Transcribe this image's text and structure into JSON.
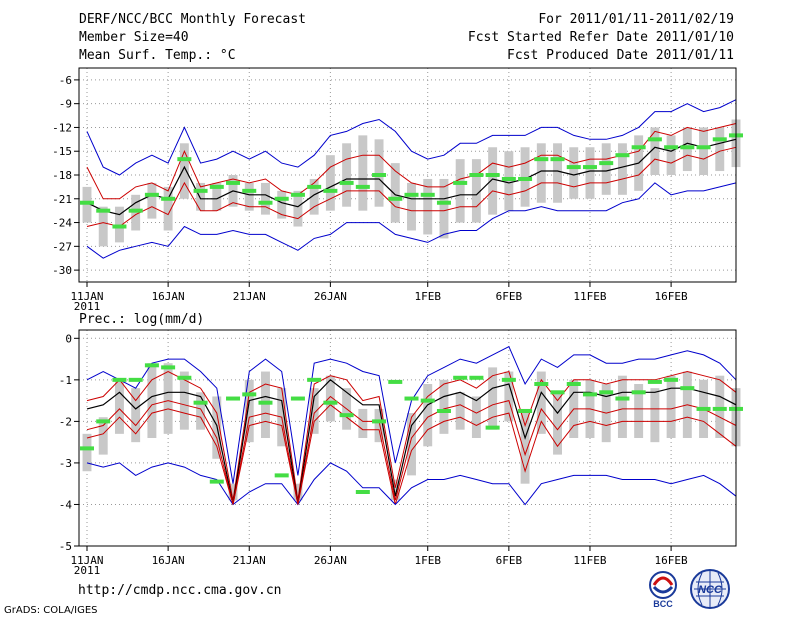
{
  "header": {
    "title": "DERF/NCC/BCC Monthly Forecast",
    "member_size": "Member Size=40",
    "variable": "Mean Surf. Temp.: °C",
    "period": "For 2011/01/11-2011/02/19",
    "started": "Fcst Started Refer Date 2011/01/10",
    "produced": "Fcst Produced Date 2011/01/11"
  },
  "footer": {
    "url": "http://cmdp.ncc.cma.gov.cn",
    "grads": "GrADS: COLA/IGES",
    "logo_bcc": "BCC",
    "logo_ncc": "NCC"
  },
  "colors": {
    "outer_bound": "#0000cc",
    "spread": "#cc0000",
    "mean": "#000000",
    "box": "#c8c8c8",
    "marker": "#44dd44"
  },
  "chart_data": [
    {
      "type": "line",
      "title": "Mean Surf. Temp.: °C",
      "days": 40,
      "ylim": [
        -31.5,
        -4.5
      ],
      "yticks": [
        -6,
        -9,
        -12,
        -15,
        -18,
        -21,
        -24,
        -27,
        -30
      ],
      "x_ticks": [
        {
          "day": 0,
          "label": "11JAN",
          "sub": "2011"
        },
        {
          "day": 5,
          "label": "16JAN"
        },
        {
          "day": 10,
          "label": "21JAN"
        },
        {
          "day": 15,
          "label": "26JAN"
        },
        {
          "day": 21,
          "label": "1FEB"
        },
        {
          "day": 26,
          "label": "6FEB"
        },
        {
          "day": 31,
          "label": "11FEB"
        },
        {
          "day": 36,
          "label": "16FEB"
        }
      ],
      "grid": true,
      "series": [
        {
          "name": "max",
          "values": [
            -12.5,
            -17,
            -18,
            -16.5,
            -15.5,
            -16.5,
            -12,
            -16.5,
            -16,
            -15,
            -16,
            -15,
            -16.5,
            -17,
            -15.5,
            -13,
            -12.5,
            -11.5,
            -11,
            -12.5,
            -15,
            -16,
            -15.5,
            -14,
            -14,
            -13,
            -13,
            -13,
            -12,
            -12,
            -13,
            -13.5,
            -13.5,
            -13,
            -12,
            -10,
            -10,
            -9,
            -10,
            -9.5,
            -8.5
          ]
        },
        {
          "name": "upper",
          "values": [
            -17,
            -21,
            -21,
            -19.5,
            -19,
            -20,
            -15,
            -19.5,
            -19,
            -18.5,
            -19,
            -18.5,
            -20,
            -20.5,
            -19,
            -17,
            -16,
            -15.5,
            -15.5,
            -17.5,
            -19,
            -19.5,
            -19.5,
            -18.5,
            -18,
            -16.5,
            -17,
            -16.5,
            -15.5,
            -15.5,
            -16.5,
            -16,
            -16,
            -15.5,
            -15,
            -12.5,
            -13,
            -12,
            -12.5,
            -12,
            -11.5
          ]
        },
        {
          "name": "mean",
          "values": [
            -21.5,
            -22.5,
            -23,
            -21.5,
            -20.5,
            -21,
            -17,
            -21,
            -21,
            -20,
            -20.5,
            -20.5,
            -21.5,
            -22,
            -20.5,
            -19.5,
            -18.5,
            -18.5,
            -18.5,
            -20.5,
            -21,
            -21,
            -21,
            -20.5,
            -20.5,
            -18.5,
            -19,
            -18.5,
            -17.5,
            -17.5,
            -18,
            -17.5,
            -17.5,
            -17,
            -16.5,
            -14.5,
            -15,
            -14,
            -14.5,
            -14,
            -13.5
          ]
        },
        {
          "name": "lower",
          "values": [
            -24.5,
            -24,
            -24.5,
            -23,
            -22,
            -23,
            -19,
            -22.5,
            -22.5,
            -21.5,
            -22,
            -22,
            -23,
            -23.5,
            -22,
            -21,
            -20,
            -20,
            -20,
            -22,
            -22.5,
            -22.5,
            -22.5,
            -22,
            -22,
            -20,
            -20.5,
            -20,
            -19,
            -19,
            -19.5,
            -19,
            -19,
            -18.5,
            -18,
            -16,
            -16.5,
            -15.5,
            -16,
            -15,
            -14.5
          ]
        },
        {
          "name": "min",
          "values": [
            -27,
            -28.5,
            -27.5,
            -27,
            -26.5,
            -27,
            -24.5,
            -25.5,
            -25.5,
            -25,
            -25.5,
            -25.5,
            -26.5,
            -27.5,
            -26,
            -25.5,
            -24,
            -24,
            -24,
            -25.5,
            -26,
            -26.5,
            -25.5,
            -25,
            -25,
            -23.5,
            -22.5,
            -22.5,
            -22,
            -22.5,
            -22.5,
            -22.5,
            -22.5,
            -21.5,
            -21,
            -19,
            -20.5,
            -20,
            -20,
            -19.5,
            -19
          ]
        }
      ],
      "boxes": {
        "top": [
          -19.5,
          -22,
          -22,
          -20.5,
          -19,
          -19.5,
          -14,
          -19,
          -19,
          -18,
          -19,
          -19,
          -20,
          -20,
          -18.5,
          -15.5,
          -14,
          -13,
          -13.5,
          -16.5,
          -19,
          -18.5,
          -18.5,
          -16,
          -16,
          -14.5,
          -15,
          -14.5,
          -14,
          -14,
          -14.5,
          -14.5,
          -14,
          -14,
          -13,
          -12,
          -13,
          -12,
          -12,
          -12,
          -11
        ],
        "bottom": [
          -24,
          -27,
          -26.5,
          -25,
          -23.5,
          -25,
          -21,
          -22.5,
          -22.5,
          -22,
          -22.5,
          -23,
          -23.5,
          -24.5,
          -23,
          -22.5,
          -22,
          -22.5,
          -22,
          -24,
          -25,
          -25.5,
          -26,
          -24,
          -24,
          -23,
          -22.5,
          -22,
          -21.5,
          -21.5,
          -21,
          -21,
          -20.5,
          -20.5,
          -20,
          -18,
          -18,
          -17.5,
          -18,
          -17.5,
          -17
        ]
      },
      "markers": [
        -21.5,
        -22.5,
        -24.5,
        -22.5,
        -20.5,
        -21,
        -16,
        -20,
        -19.5,
        -19,
        -20,
        -21.5,
        -21,
        -20.5,
        -19.5,
        -20,
        -19,
        -19.5,
        -18,
        -21,
        -20.5,
        -20.5,
        -21.5,
        -19,
        -18,
        -18,
        -18.5,
        -18.5,
        -16,
        -16,
        -17,
        -17,
        -16.5,
        -15.5,
        -14.5,
        -13.5,
        -14.5,
        -14.5,
        -14.5,
        -13.5,
        -13
      ]
    },
    {
      "type": "line",
      "title": "Prec.: log(mm/d)",
      "days": 40,
      "ylim": [
        -5,
        0.2
      ],
      "yticks": [
        0,
        -1,
        -2,
        -3,
        -4,
        -5
      ],
      "x_ticks": [
        {
          "day": 0,
          "label": "11JAN",
          "sub": "2011"
        },
        {
          "day": 5,
          "label": "16JAN"
        },
        {
          "day": 10,
          "label": "21JAN"
        },
        {
          "day": 15,
          "label": "26JAN"
        },
        {
          "day": 21,
          "label": "1FEB"
        },
        {
          "day": 26,
          "label": "6FEB"
        },
        {
          "day": 31,
          "label": "11FEB"
        },
        {
          "day": 36,
          "label": "16FEB"
        }
      ],
      "grid": true,
      "series": [
        {
          "name": "max",
          "values": [
            -1,
            -0.8,
            -1,
            -1.2,
            -0.6,
            -0.5,
            -0.5,
            -0.8,
            -1.2,
            -3.5,
            -0.8,
            -0.5,
            -0.8,
            -3.3,
            -0.6,
            -0.5,
            -0.6,
            -0.8,
            -0.9,
            -3,
            -1.5,
            -0.9,
            -0.7,
            -0.5,
            -0.6,
            -0.4,
            -0.2,
            -1.1,
            -0.5,
            -0.7,
            -0.4,
            -0.4,
            -0.6,
            -0.6,
            -0.5,
            -0.5,
            -0.4,
            -0.3,
            -0.4,
            -0.6,
            -1
          ]
        },
        {
          "name": "upper",
          "values": [
            -1.5,
            -1.4,
            -1,
            -1.5,
            -1,
            -0.8,
            -1,
            -1.2,
            -1.8,
            -3.9,
            -1.3,
            -1.1,
            -1.2,
            -3.9,
            -1.1,
            -0.9,
            -1,
            -1.5,
            -1.4,
            -3.6,
            -1.9,
            -1.4,
            -1.1,
            -1,
            -1.2,
            -0.9,
            -0.8,
            -2.1,
            -1,
            -1.5,
            -1,
            -1,
            -1.1,
            -1,
            -1,
            -1,
            -0.9,
            -0.8,
            -0.9,
            -1,
            -1.3
          ]
        },
        {
          "name": "mean",
          "values": [
            -1.7,
            -1.6,
            -1.3,
            -1.7,
            -1.4,
            -1.3,
            -1.3,
            -1.4,
            -2.1,
            -4,
            -1.5,
            -1.4,
            -1.5,
            -4,
            -1.4,
            -1,
            -1.3,
            -1.6,
            -1.6,
            -3.8,
            -2.1,
            -1.6,
            -1.4,
            -1.3,
            -1.5,
            -1.2,
            -1.1,
            -2.4,
            -1.3,
            -1.8,
            -1.3,
            -1.3,
            -1.4,
            -1.3,
            -1.3,
            -1.3,
            -1.2,
            -1.2,
            -1.3,
            -1.4,
            -1.6
          ]
        },
        {
          "name": "lower",
          "values": [
            -2.4,
            -2.3,
            -1.9,
            -2.3,
            -1.8,
            -1.7,
            -1.8,
            -1.9,
            -2.6,
            -4,
            -2.1,
            -2,
            -2.1,
            -4,
            -2,
            -1.6,
            -1.9,
            -2.2,
            -2.2,
            -4,
            -2.7,
            -2.2,
            -2,
            -1.9,
            -2.1,
            -1.9,
            -1.8,
            -3.2,
            -2,
            -2.6,
            -2.1,
            -2,
            -2.1,
            -2,
            -2,
            -2,
            -2,
            -1.9,
            -2,
            -2.3,
            -2.6
          ]
        },
        {
          "name": "min",
          "values": [
            -3,
            -3.1,
            -3,
            -3.3,
            -3.1,
            -3,
            -3.1,
            -3.3,
            -3.4,
            -4,
            -3.7,
            -3.5,
            -3.5,
            -4,
            -3.4,
            -3,
            -3.2,
            -3.6,
            -3.6,
            -4,
            -3.6,
            -3.4,
            -3.4,
            -3.3,
            -3.4,
            -3.5,
            -3.5,
            -4,
            -3.5,
            -3.4,
            -3.3,
            -3.3,
            -3.3,
            -3.4,
            -3.4,
            -3.4,
            -3.5,
            -3.4,
            -3.3,
            -3.5,
            -3.8
          ]
        },
        {
          "name": "inner",
          "values": [
            -2.2,
            -2.1,
            -1.7,
            -2.1,
            -1.6,
            -1.5,
            -1.6,
            -1.7,
            -2.4,
            -4,
            -1.9,
            -1.8,
            -1.9,
            -4,
            -1.8,
            -1.4,
            -1.7,
            -2,
            -2,
            -3.9,
            -2.4,
            -1.9,
            -1.7,
            -1.6,
            -1.8,
            -1.6,
            -1.5,
            -2.8,
            -1.7,
            -2.2,
            -1.7,
            -1.7,
            -1.8,
            -1.7,
            -1.7,
            -1.7,
            -1.7,
            -1.6,
            -1.7,
            -1.9,
            -2.1
          ]
        }
      ],
      "boxes": {
        "top": [
          -2.3,
          -1.9,
          -1,
          -1.2,
          -0.6,
          -0.6,
          -0.8,
          -1.3,
          -1.4,
          -3.5,
          -1,
          -0.8,
          -1.2,
          -3.5,
          -1.2,
          -0.9,
          -1.2,
          -1.7,
          -1.7,
          -3.4,
          -1.8,
          -1.1,
          -1,
          -1.3,
          -1.4,
          -0.7,
          -0.8,
          -1.7,
          -0.8,
          -1.3,
          -1,
          -1,
          -1.1,
          -0.9,
          -1.1,
          -1.2,
          -0.9,
          -0.8,
          -1,
          -0.9,
          -1.2
        ],
        "bottom": [
          -3.2,
          -2.8,
          -2.3,
          -2.5,
          -2.4,
          -2.3,
          -2.2,
          -2.2,
          -2.9,
          -3.9,
          -2.5,
          -2.4,
          -2.6,
          -3.9,
          -2.3,
          -2,
          -2.2,
          -2.4,
          -2.5,
          -3.9,
          -3.3,
          -2.6,
          -2.3,
          -2.2,
          -2.4,
          -2.2,
          -2,
          -3.5,
          -2.3,
          -2.8,
          -2.4,
          -2.4,
          -2.5,
          -2.4,
          -2.4,
          -2.5,
          -2.4,
          -2.4,
          -2.4,
          -2.4,
          -2.6
        ]
      },
      "markers": [
        -2.65,
        -2,
        -1,
        -1,
        -0.65,
        -0.7,
        -0.95,
        -1.55,
        -3.45,
        -1.45,
        -1.35,
        -1.55,
        -3.3,
        -1.45,
        -1,
        -1.55,
        -1.85,
        -3.7,
        -2,
        -1.05,
        -1.45,
        -1.5,
        -1.75,
        -0.95,
        -0.95,
        -2.15,
        -1,
        -1.75,
        -1.1,
        -1.3,
        -1.1,
        -1.35,
        -1.3,
        -1.45,
        -1.3,
        -1.05,
        -1,
        -1.2,
        -1.7,
        -1.7,
        -1.7
      ]
    }
  ]
}
